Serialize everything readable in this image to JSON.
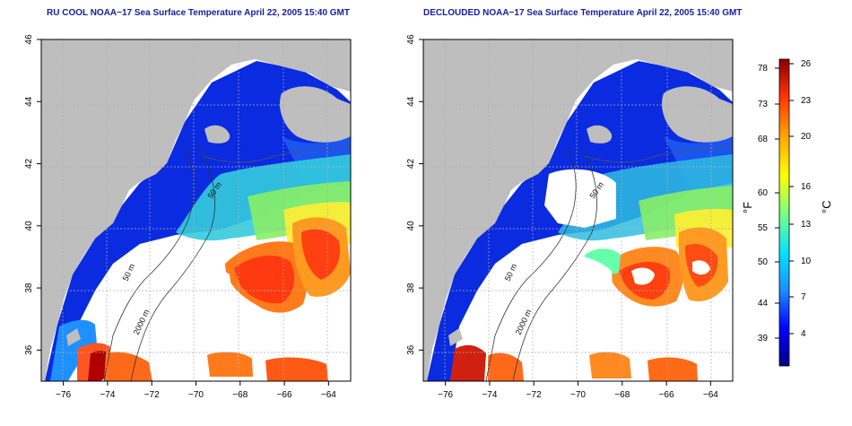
{
  "panels": [
    {
      "id": "left",
      "title": "RU COOL NOAA−17 Sea Surface Temperature April 22, 2005 15:40 GMT",
      "contour_labels": [
        "50 m",
        "50 m",
        "2000 m"
      ]
    },
    {
      "id": "right",
      "title": "DECLOUDED NOAA−17 Sea Surface Temperature April 22, 2005 15:40 GMT",
      "contour_labels": [
        "50 m",
        "50 m",
        "2000 m"
      ]
    }
  ],
  "axes": {
    "x_ticks": [
      "−76",
      "−74",
      "−72",
      "−70",
      "−68",
      "−66",
      "−64"
    ],
    "y_ticks": [
      "36",
      "38",
      "40",
      "42",
      "44",
      "46"
    ],
    "xlim": [
      -77,
      -63
    ],
    "ylim": [
      35,
      46
    ]
  },
  "colorbar": {
    "left_label": "°F",
    "right_label": "°C",
    "f_ticks": [
      "78",
      "73",
      "68",
      "60",
      "55",
      "50",
      "44",
      "39"
    ],
    "c_ticks": [
      "26",
      "23",
      "20",
      "16",
      "13",
      "10",
      "7",
      "4"
    ],
    "colors": [
      "#00008b",
      "#0000ff",
      "#1e90ff",
      "#00e5ff",
      "#7fff7f",
      "#ffff00",
      "#ffa500",
      "#ff3300",
      "#8b0000"
    ]
  },
  "colors": {
    "land": "#bebebe",
    "grid": "#b0b0b0",
    "title": "#1a1aa0"
  }
}
